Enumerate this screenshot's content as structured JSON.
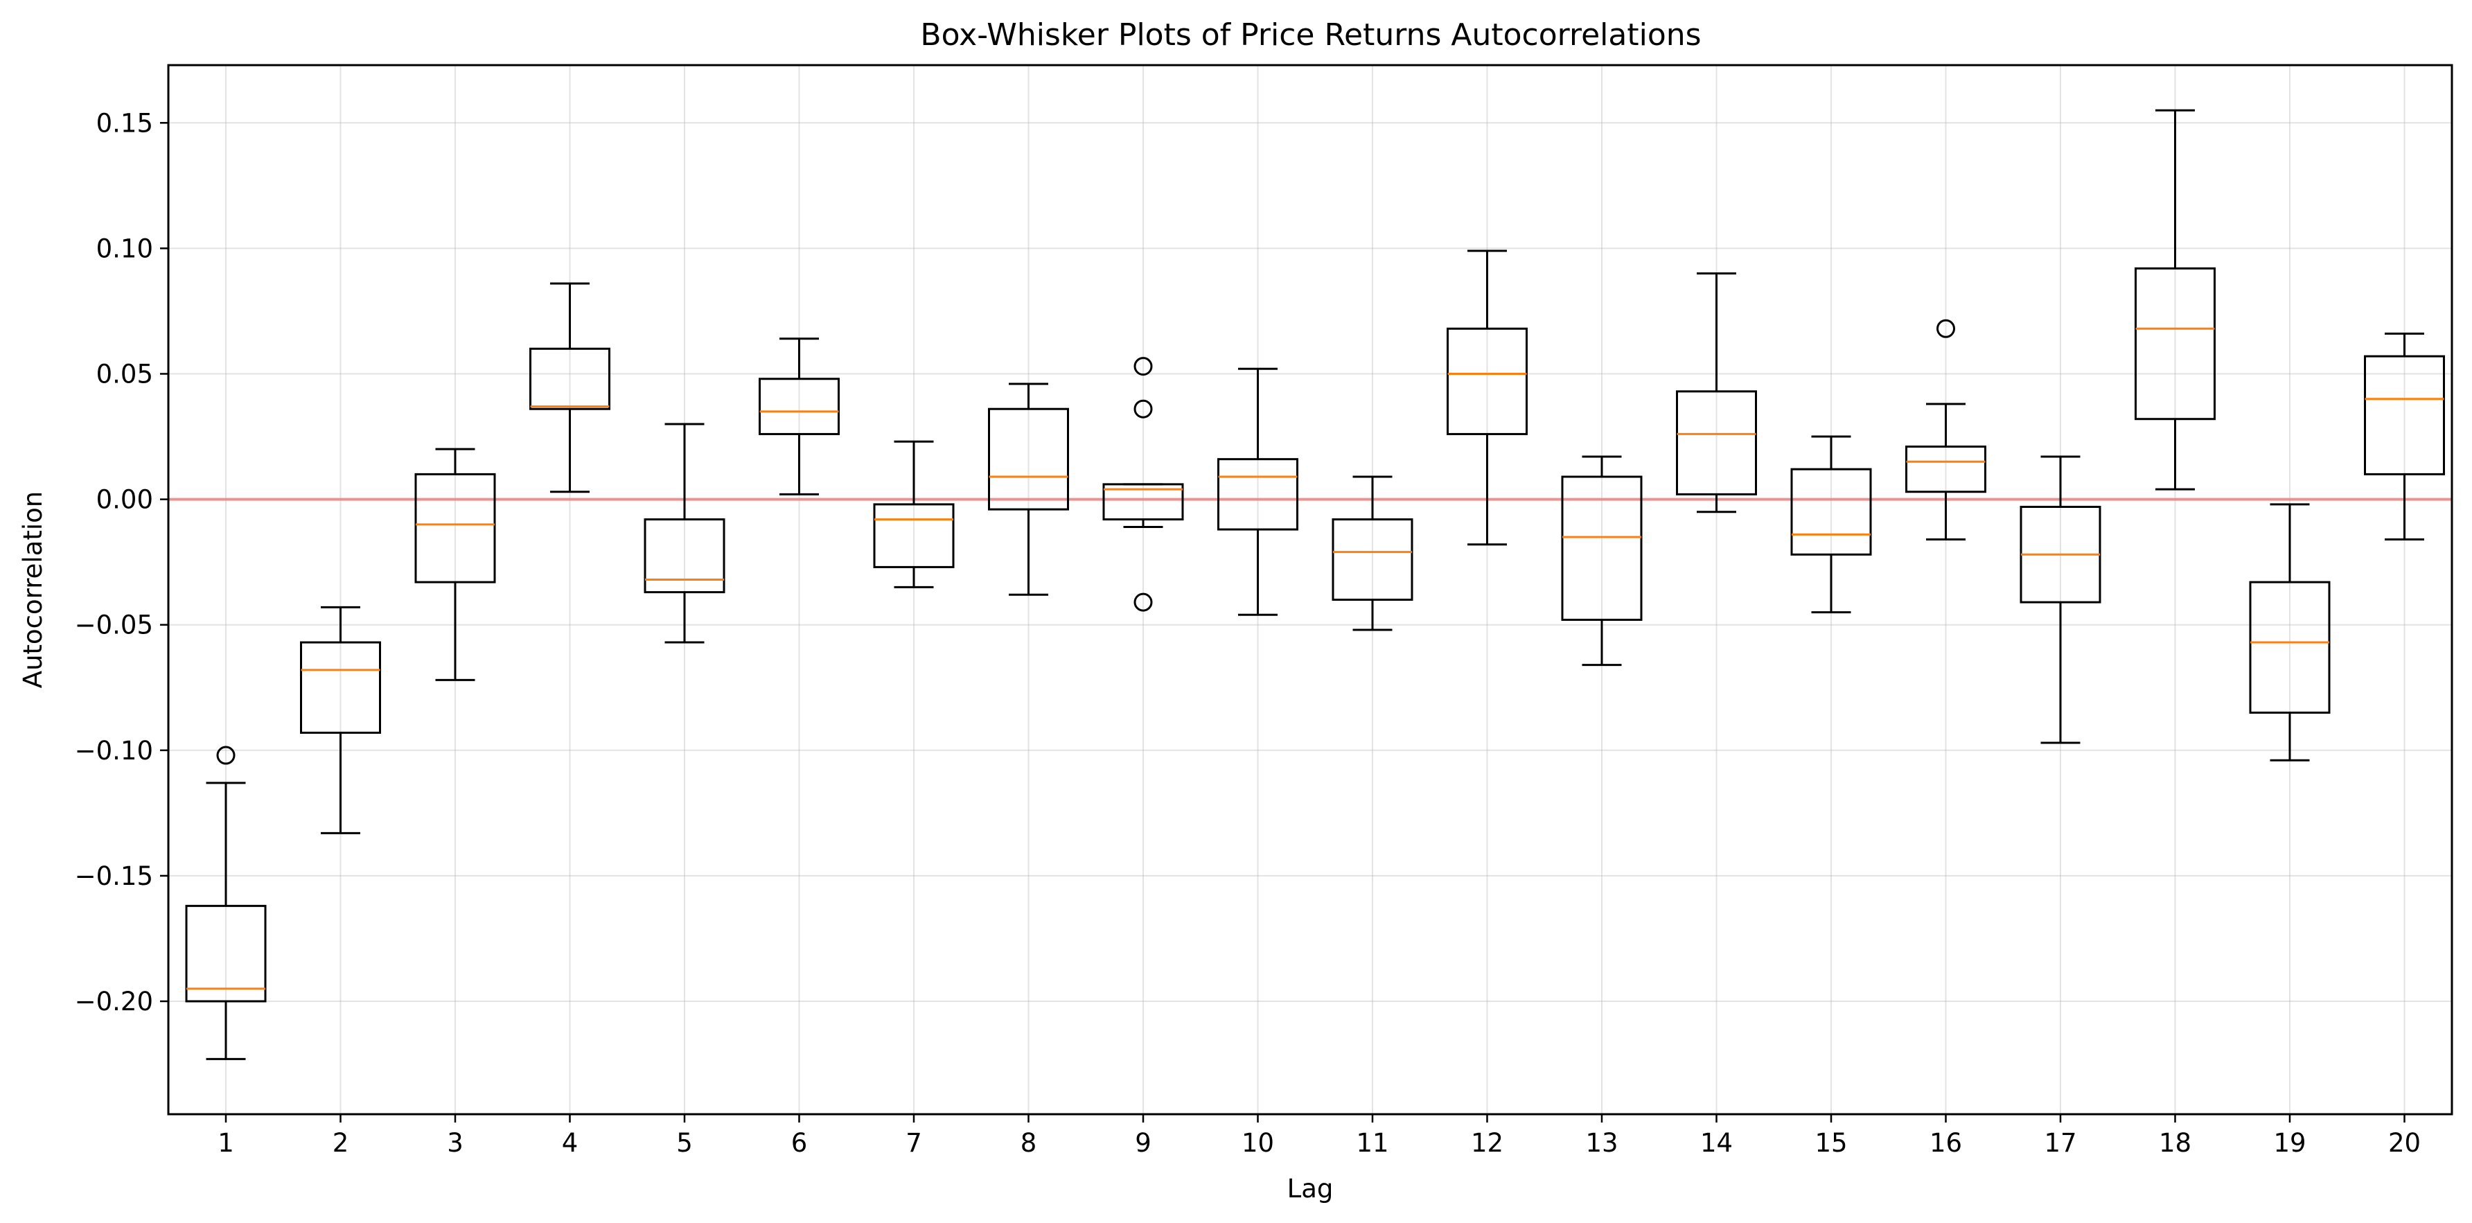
{
  "chart_data": {
    "type": "boxplot",
    "title": "Box-Whisker Plots of Price Returns Autocorrelations",
    "xlabel": "Lag",
    "ylabel": "Autocorrelation",
    "ylim": [
      -0.245,
      0.173
    ],
    "yticks": [
      -0.2,
      -0.15,
      -0.1,
      -0.05,
      0.0,
      0.05,
      0.1,
      0.15
    ],
    "ytick_labels": [
      "−0.20",
      "−0.15",
      "−0.10",
      "−0.05",
      "0.00",
      "0.05",
      "0.10",
      "0.15"
    ],
    "grid": true,
    "reference_line": {
      "y": 0.0,
      "color": "#f08080"
    },
    "box_color": "#000000",
    "median_color": "#ff7f0e",
    "categories": [
      "1",
      "2",
      "3",
      "4",
      "5",
      "6",
      "7",
      "8",
      "9",
      "10",
      "11",
      "12",
      "13",
      "14",
      "15",
      "16",
      "17",
      "18",
      "19",
      "20"
    ],
    "boxes": [
      {
        "lag": "1",
        "whislo": -0.223,
        "q1": -0.2,
        "med": -0.195,
        "q3": -0.162,
        "whishi": -0.113,
        "fliers": [
          -0.102
        ]
      },
      {
        "lag": "2",
        "whislo": -0.133,
        "q1": -0.093,
        "med": -0.068,
        "q3": -0.057,
        "whishi": -0.043,
        "fliers": []
      },
      {
        "lag": "3",
        "whislo": -0.072,
        "q1": -0.033,
        "med": -0.01,
        "q3": 0.01,
        "whishi": 0.02,
        "fliers": []
      },
      {
        "lag": "4",
        "whislo": 0.003,
        "q1": 0.036,
        "med": 0.037,
        "q3": 0.06,
        "whishi": 0.086,
        "fliers": []
      },
      {
        "lag": "5",
        "whislo": -0.057,
        "q1": -0.037,
        "med": -0.032,
        "q3": -0.008,
        "whishi": 0.03,
        "fliers": []
      },
      {
        "lag": "6",
        "whislo": 0.002,
        "q1": 0.026,
        "med": 0.035,
        "q3": 0.048,
        "whishi": 0.064,
        "fliers": []
      },
      {
        "lag": "7",
        "whislo": -0.035,
        "q1": -0.027,
        "med": -0.008,
        "q3": -0.002,
        "whishi": 0.023,
        "fliers": []
      },
      {
        "lag": "8",
        "whislo": -0.038,
        "q1": -0.004,
        "med": 0.009,
        "q3": 0.036,
        "whishi": 0.046,
        "fliers": []
      },
      {
        "lag": "9",
        "whislo": -0.011,
        "q1": -0.008,
        "med": 0.004,
        "q3": 0.006,
        "whishi": 0.006,
        "fliers": [
          0.053,
          0.036,
          -0.041
        ]
      },
      {
        "lag": "10",
        "whislo": -0.046,
        "q1": -0.012,
        "med": 0.009,
        "q3": 0.016,
        "whishi": 0.052,
        "fliers": []
      },
      {
        "lag": "11",
        "whislo": -0.052,
        "q1": -0.04,
        "med": -0.021,
        "q3": -0.008,
        "whishi": 0.009,
        "fliers": []
      },
      {
        "lag": "12",
        "whislo": -0.018,
        "q1": 0.026,
        "med": 0.05,
        "q3": 0.068,
        "whishi": 0.099,
        "fliers": []
      },
      {
        "lag": "13",
        "whislo": -0.066,
        "q1": -0.048,
        "med": -0.015,
        "q3": 0.009,
        "whishi": 0.017,
        "fliers": []
      },
      {
        "lag": "14",
        "whislo": -0.005,
        "q1": 0.002,
        "med": 0.026,
        "q3": 0.043,
        "whishi": 0.09,
        "fliers": []
      },
      {
        "lag": "15",
        "whislo": -0.045,
        "q1": -0.022,
        "med": -0.014,
        "q3": 0.012,
        "whishi": 0.025,
        "fliers": []
      },
      {
        "lag": "16",
        "whislo": -0.016,
        "q1": 0.003,
        "med": 0.015,
        "q3": 0.021,
        "whishi": 0.038,
        "fliers": [
          0.068
        ]
      },
      {
        "lag": "17",
        "whislo": -0.097,
        "q1": -0.041,
        "med": -0.022,
        "q3": -0.003,
        "whishi": 0.017,
        "fliers": []
      },
      {
        "lag": "18",
        "whislo": 0.004,
        "q1": 0.032,
        "med": 0.068,
        "q3": 0.092,
        "whishi": 0.155,
        "fliers": []
      },
      {
        "lag": "19",
        "whislo": -0.104,
        "q1": -0.085,
        "med": -0.057,
        "q3": -0.033,
        "whishi": -0.002,
        "fliers": []
      },
      {
        "lag": "20",
        "whislo": -0.016,
        "q1": 0.01,
        "med": 0.04,
        "q3": 0.057,
        "whishi": 0.066,
        "fliers": []
      }
    ]
  }
}
